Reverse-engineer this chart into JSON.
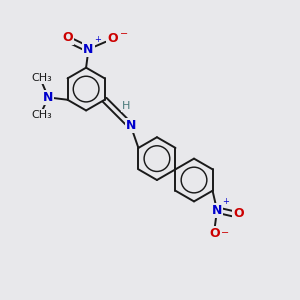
{
  "bg_color": "#e8e8eb",
  "bond_color": "#1a1a1a",
  "bond_width": 1.4,
  "atom_colors": {
    "N": "#0000cc",
    "O": "#cc0000",
    "H": "#4a7a7a",
    "N_dark": "#0000cc"
  },
  "figsize": [
    3.0,
    3.0
  ],
  "dpi": 100,
  "xlim": [
    0,
    10
  ],
  "ylim": [
    0,
    10
  ]
}
